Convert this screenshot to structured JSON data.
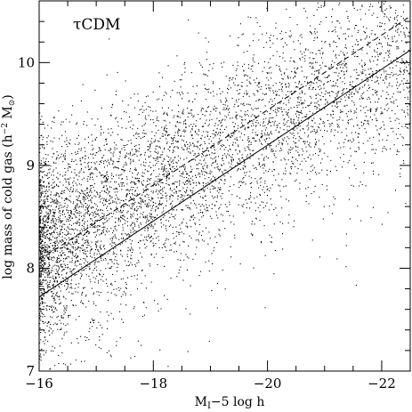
{
  "chart_data": {
    "type": "scatter",
    "annotation": "τCDM",
    "xlabel": {
      "main": "M",
      "sub": "I",
      "rest": "−5 log h"
    },
    "ylabel": {
      "pre": "log mass of cold gas (h",
      "sup": "−2",
      "mid": " M",
      "sub": "⊙",
      "post": ")"
    },
    "xlim": [
      -16,
      -22.5
    ],
    "ylim": [
      7,
      10.6
    ],
    "x_ticks": [
      -16,
      -18,
      -20,
      -22
    ],
    "x_tick_labels": [
      "−16",
      "−18",
      "−20",
      "−22"
    ],
    "y_ticks": [
      7,
      8,
      9,
      10
    ],
    "y_tick_labels": [
      "7",
      "8",
      "9",
      "10"
    ],
    "x_minor_step": 0.5,
    "y_minor_step": 0.2,
    "grid": false,
    "legend": "none",
    "series": [
      {
        "style": "points",
        "color": "#000000",
        "density": {
          "approx_points": 5600,
          "x_distribution": "concentrated toward M_I − 5 log h ≈ −16 to −17.5, sparser at brighter magnitudes",
          "trend_mean_y": [
            [
              -16,
              8.25
            ],
            [
              -18,
              8.85
            ],
            [
              -20,
              9.45
            ],
            [
              -22,
              10.0
            ]
          ],
          "spread_dex": 0.45,
          "low_gas_tail": "sparse scatter down to log mass ≈ 7"
        }
      },
      {
        "style": "solid-line",
        "color": "#000000",
        "x": [
          -16,
          -22.5
        ],
        "y": [
          7.72,
          10.12
        ]
      },
      {
        "style": "dashed-line",
        "color": "#000000",
        "x": [
          -16,
          -22.5
        ],
        "y": [
          8.08,
          10.45
        ]
      }
    ]
  }
}
